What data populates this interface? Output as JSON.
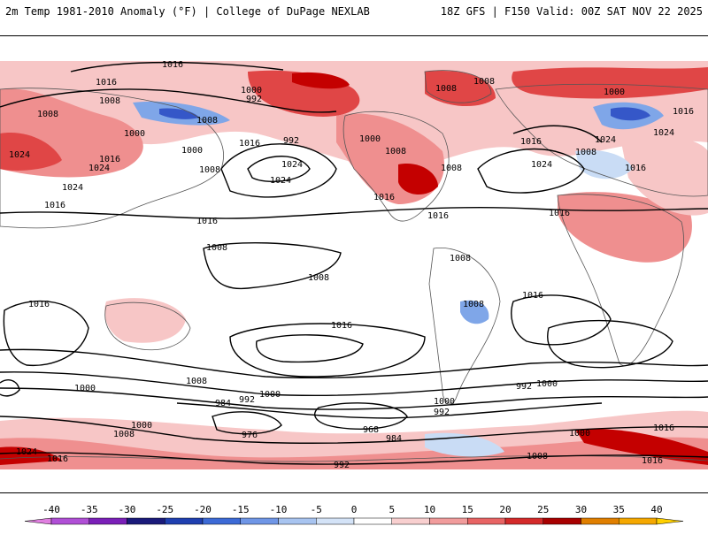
{
  "header": {
    "title": "2m Temp 1981-2010 Anomaly (°F) | College of DuPage NEXLAB",
    "run_info": "18Z GFS | F150 Valid: 00Z SAT NOV 22 2025"
  },
  "colors": {
    "warm_light": "#f7c6c6",
    "warm_mid": "#ef8f8f",
    "warm_strong": "#e04646",
    "warm_deep": "#c40000",
    "cold_light": "#c9dcf5",
    "cold_mid": "#7fa6e8",
    "cold_strong": "#3557c8",
    "contour": "#000000",
    "coast": "#555555"
  },
  "colorbar": {
    "ticks": [
      "-40",
      "-35",
      "-30",
      "-25",
      "-20",
      "-15",
      "-10",
      "-5",
      "0",
      "5",
      "10",
      "15",
      "20",
      "25",
      "30",
      "35",
      "40"
    ],
    "colors": [
      "#e07fe0",
      "#b04fd6",
      "#7a1fb8",
      "#1a1a7a",
      "#1f3fb0",
      "#3c6ad6",
      "#6f96e6",
      "#a8c4f0",
      "#d4e3f7",
      "#ffffff",
      "#f8cfcf",
      "#f19c9c",
      "#e86464",
      "#d42a2a",
      "#a80000",
      "#e07f00",
      "#f5a800",
      "#ffd000"
    ]
  },
  "pressure_labels": [
    "1016",
    "1016",
    "1008",
    "1008",
    "1000",
    "1008",
    "1000",
    "992",
    "1016",
    "992",
    "1000",
    "1024",
    "1016",
    "1024",
    "1008",
    "1024",
    "1016",
    "1000",
    "1024",
    "1008",
    "1016",
    "1024",
    "1016",
    "1016",
    "1008",
    "1008",
    "1000",
    "1008",
    "1016",
    "1024",
    "1008",
    "1016",
    "1008",
    "1008",
    "1008",
    "1024",
    "1016",
    "1016",
    "1016",
    "1024",
    "1008",
    "1016",
    "1016",
    "1000",
    "1008",
    "992",
    "1000",
    "984",
    "992",
    "1000",
    "992",
    "1000",
    "968",
    "976",
    "984",
    "1008",
    "1016",
    "1000",
    "1024",
    "1016",
    "1000",
    "992",
    "1008",
    "1016"
  ],
  "contour_values": {
    "isobar_interval": "8"
  }
}
